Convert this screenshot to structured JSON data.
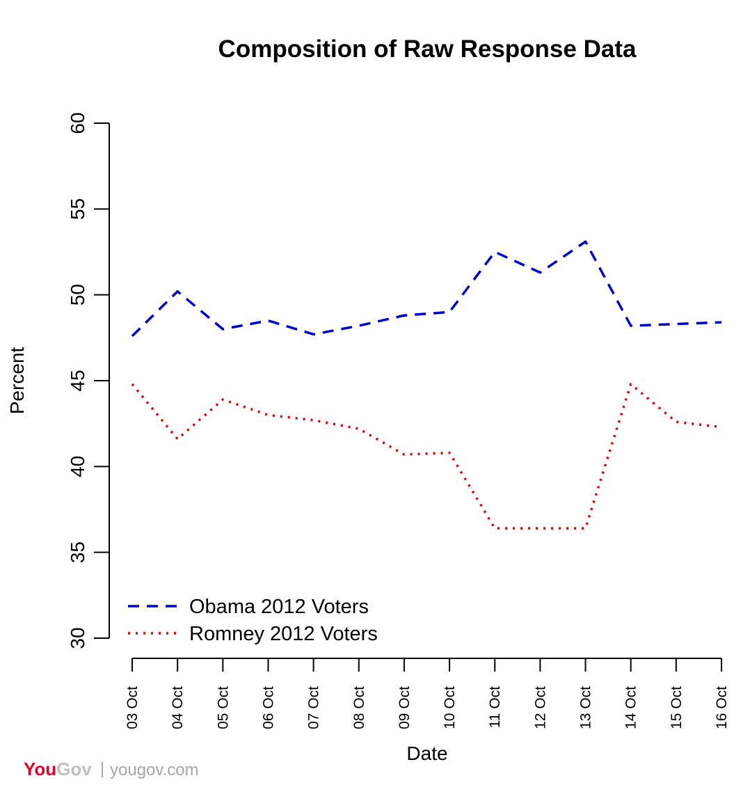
{
  "chart_data": {
    "type": "line",
    "title": "Composition of Raw Response Data",
    "xlabel": "Date",
    "ylabel": "Percent",
    "ylim": [
      30,
      60
    ],
    "yticks": [
      30,
      35,
      40,
      45,
      50,
      55,
      60
    ],
    "categories": [
      "03 Oct",
      "04 Oct",
      "05 Oct",
      "06 Oct",
      "07 Oct",
      "08 Oct",
      "09 Oct",
      "10 Oct",
      "11 Oct",
      "12 Oct",
      "13 Oct",
      "14 Oct",
      "15 Oct",
      "16 Oct"
    ],
    "grid": false,
    "legend_position": "bottom-left",
    "series": [
      {
        "name": "Obama 2012 Voters",
        "color": "#0000cc",
        "line_style": "dashed",
        "values": [
          47.6,
          50.2,
          48.0,
          48.5,
          47.7,
          48.2,
          48.8,
          49.0,
          52.5,
          51.3,
          53.1,
          48.2,
          48.3,
          48.4
        ]
      },
      {
        "name": "Romney 2012 Voters",
        "color": "#dd0000",
        "line_style": "dotted",
        "values": [
          44.8,
          41.6,
          43.9,
          43.0,
          42.7,
          42.2,
          40.7,
          40.8,
          36.4,
          36.4,
          36.4,
          44.8,
          42.6,
          42.3
        ]
      }
    ]
  },
  "branding": {
    "logo_you": "You",
    "logo_gov": "Gov",
    "separator": "|",
    "site": "yougov.com"
  }
}
